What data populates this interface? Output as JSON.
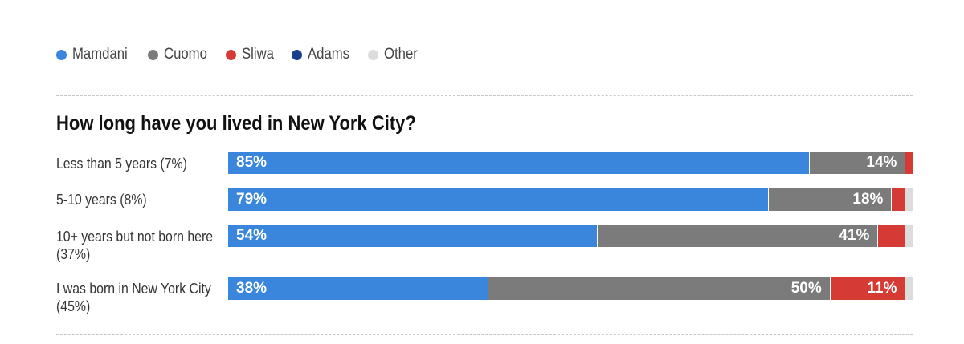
{
  "legend": [
    {
      "name": "Mamdani",
      "color": "#3b86dd"
    },
    {
      "name": "Cuomo",
      "color": "#7b7b7b"
    },
    {
      "name": "Sliwa",
      "color": "#d63a35"
    },
    {
      "name": "Adams",
      "color": "#1b3f8b"
    },
    {
      "name": "Other",
      "color": "#dcdcdc"
    }
  ],
  "chart_data": {
    "type": "bar",
    "orientation": "horizontal",
    "stacked": true,
    "title": "How long have you lived in New York City?",
    "categories": [
      "Less than 5 years (7%)",
      "5-10 years (8%)",
      "10+ years but not born here (37%)",
      "I was born in New York City (45%)"
    ],
    "category_lines": [
      [
        "Less than 5 years (7%)"
      ],
      [
        "5-10 years (8%)"
      ],
      [
        "10+ years but not born here",
        "(37%)"
      ],
      [
        "I was born in New York City",
        "(45%)"
      ]
    ],
    "series": [
      {
        "name": "Mamdani",
        "color": "#3b86dd",
        "values": [
          85,
          79,
          54,
          38
        ],
        "labels": [
          "85%",
          "79%",
          "54%",
          "38%"
        ]
      },
      {
        "name": "Cuomo",
        "color": "#7b7b7b",
        "values": [
          14,
          18,
          41,
          50
        ],
        "labels": [
          "14%",
          "18%",
          "41%",
          "50%"
        ]
      },
      {
        "name": "Sliwa",
        "color": "#d63a35",
        "values": [
          1,
          2,
          4,
          11
        ],
        "labels": [
          "",
          "",
          "",
          "11%"
        ]
      },
      {
        "name": "Adams",
        "color": "#1b3f8b",
        "values": [
          0,
          0,
          0,
          0
        ],
        "labels": [
          "",
          "",
          "",
          ""
        ]
      },
      {
        "name": "Other",
        "color": "#dcdcdc",
        "values": [
          0,
          1,
          1,
          1
        ],
        "labels": [
          "",
          "",
          "",
          ""
        ]
      }
    ],
    "xlim": [
      0,
      100
    ],
    "legend_position": "top-left"
  }
}
